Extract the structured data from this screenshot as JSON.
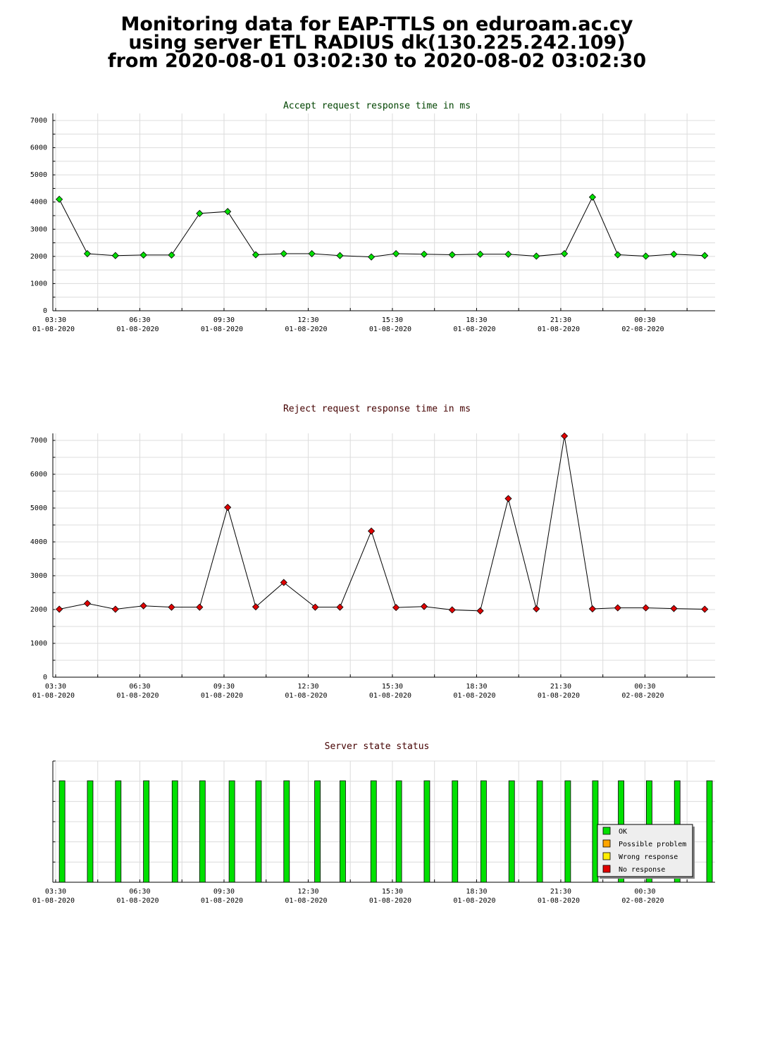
{
  "title": {
    "line1": "Monitoring data for EAP-TTLS on eduroam.ac.cy",
    "line2": "using server ETL RADIUS dk(130.225.242.109)",
    "line3": "from 2020-08-01 03:02:30 to 2020-08-02 03:02:30"
  },
  "x_axis": {
    "range_hours": [
      3.4,
      27.0
    ],
    "ticks": [
      {
        "hour": 3.5,
        "time": "03:30",
        "date": "01-08-2020"
      },
      {
        "hour": 6.5,
        "time": "06:30",
        "date": "01-08-2020"
      },
      {
        "hour": 9.5,
        "time": "09:30",
        "date": "01-08-2020"
      },
      {
        "hour": 12.5,
        "time": "12:30",
        "date": "01-08-2020"
      },
      {
        "hour": 15.5,
        "time": "15:30",
        "date": "01-08-2020"
      },
      {
        "hour": 18.5,
        "time": "18:30",
        "date": "01-08-2020"
      },
      {
        "hour": 21.5,
        "time": "21:30",
        "date": "01-08-2020"
      },
      {
        "hour": 24.5,
        "time": "00:30",
        "date": "02-08-2020"
      }
    ]
  },
  "chart_data": [
    {
      "type": "line",
      "title": "Accept request response time in ms",
      "ylim": [
        0,
        7000
      ],
      "yticks": [
        0,
        1000,
        2000,
        3000,
        4000,
        5000,
        6000,
        7000
      ],
      "color": "#00e000",
      "title_color": "#004400",
      "x": [
        3.63,
        4.63,
        5.63,
        6.63,
        7.63,
        8.63,
        9.63,
        10.63,
        11.63,
        12.63,
        13.63,
        14.75,
        15.63,
        16.63,
        17.63,
        18.63,
        19.63,
        20.63,
        21.63,
        22.63,
        23.53,
        24.53,
        25.53,
        26.63
      ],
      "values": [
        4100,
        2100,
        2030,
        2050,
        2050,
        3580,
        3650,
        2060,
        2100,
        2100,
        2030,
        1980,
        2100,
        2080,
        2060,
        2080,
        2080,
        2010,
        2100,
        4180,
        2060,
        2010,
        2080,
        2030
      ]
    },
    {
      "type": "line",
      "title": "Reject request response time in ms",
      "ylim": [
        0,
        7000
      ],
      "yticks": [
        0,
        1000,
        2000,
        3000,
        4000,
        5000,
        6000,
        7000
      ],
      "color": "#e00000",
      "title_color": "#440000",
      "x": [
        3.63,
        4.63,
        5.63,
        6.63,
        7.63,
        8.63,
        9.63,
        10.63,
        11.63,
        12.75,
        13.63,
        14.75,
        15.63,
        16.63,
        17.63,
        18.63,
        19.63,
        20.63,
        21.63,
        22.63,
        23.53,
        24.53,
        25.53,
        26.63
      ],
      "values": [
        2010,
        2180,
        2010,
        2110,
        2070,
        2070,
        5020,
        2080,
        2800,
        2070,
        2070,
        4320,
        2060,
        2090,
        1990,
        1960,
        5280,
        2020,
        7130,
        2020,
        2050,
        2050,
        2030,
        2010
      ]
    },
    {
      "type": "bar",
      "title": "Server state status",
      "title_color": "#440000",
      "x": [
        3.73,
        4.73,
        5.73,
        6.73,
        7.75,
        8.73,
        9.78,
        10.73,
        11.73,
        12.83,
        13.73,
        14.83,
        15.73,
        16.73,
        17.73,
        18.75,
        19.75,
        20.75,
        21.75,
        22.73,
        23.65,
        24.65,
        25.65,
        26.8
      ],
      "status": [
        "OK",
        "OK",
        "OK",
        "OK",
        "OK",
        "OK",
        "OK",
        "OK",
        "OK",
        "OK",
        "OK",
        "OK",
        "OK",
        "OK",
        "OK",
        "OK",
        "OK",
        "OK",
        "OK",
        "OK",
        "OK",
        "OK",
        "OK",
        "OK"
      ],
      "legend": [
        {
          "label": "OK",
          "color": "#00e000"
        },
        {
          "label": "Possible problem",
          "color": "#ffa500"
        },
        {
          "label": "Wrong response",
          "color": "#ffee00"
        },
        {
          "label": "No response",
          "color": "#e00000"
        }
      ]
    }
  ]
}
